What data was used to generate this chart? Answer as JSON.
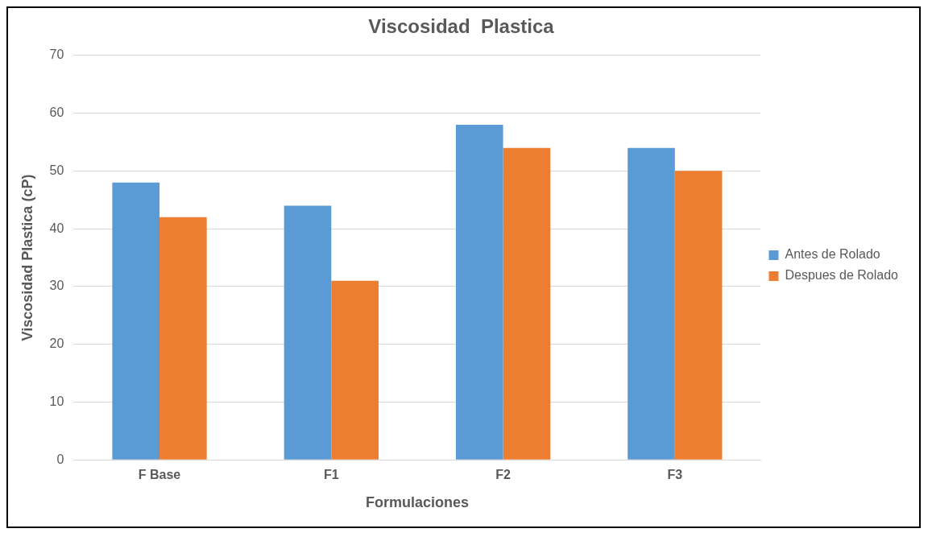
{
  "chart_data": {
    "type": "bar",
    "title": "Viscosidad  Plastica",
    "xlabel": "Formulaciones",
    "ylabel": "Viscosidad Plastica (cP)",
    "categories": [
      "F Base",
      "F1",
      "F2",
      "F3"
    ],
    "series": [
      {
        "name": "Antes de Rolado",
        "color": "#5b9bd5",
        "values": [
          48,
          44,
          58,
          54
        ]
      },
      {
        "name": "Despues de Rolado",
        "color": "#ed7d31",
        "values": [
          42,
          31,
          54,
          50
        ]
      }
    ],
    "ylim": [
      0,
      70
    ],
    "yticks": [
      0,
      10,
      20,
      30,
      40,
      50,
      60,
      70
    ],
    "grid": "y",
    "legend": "right"
  }
}
